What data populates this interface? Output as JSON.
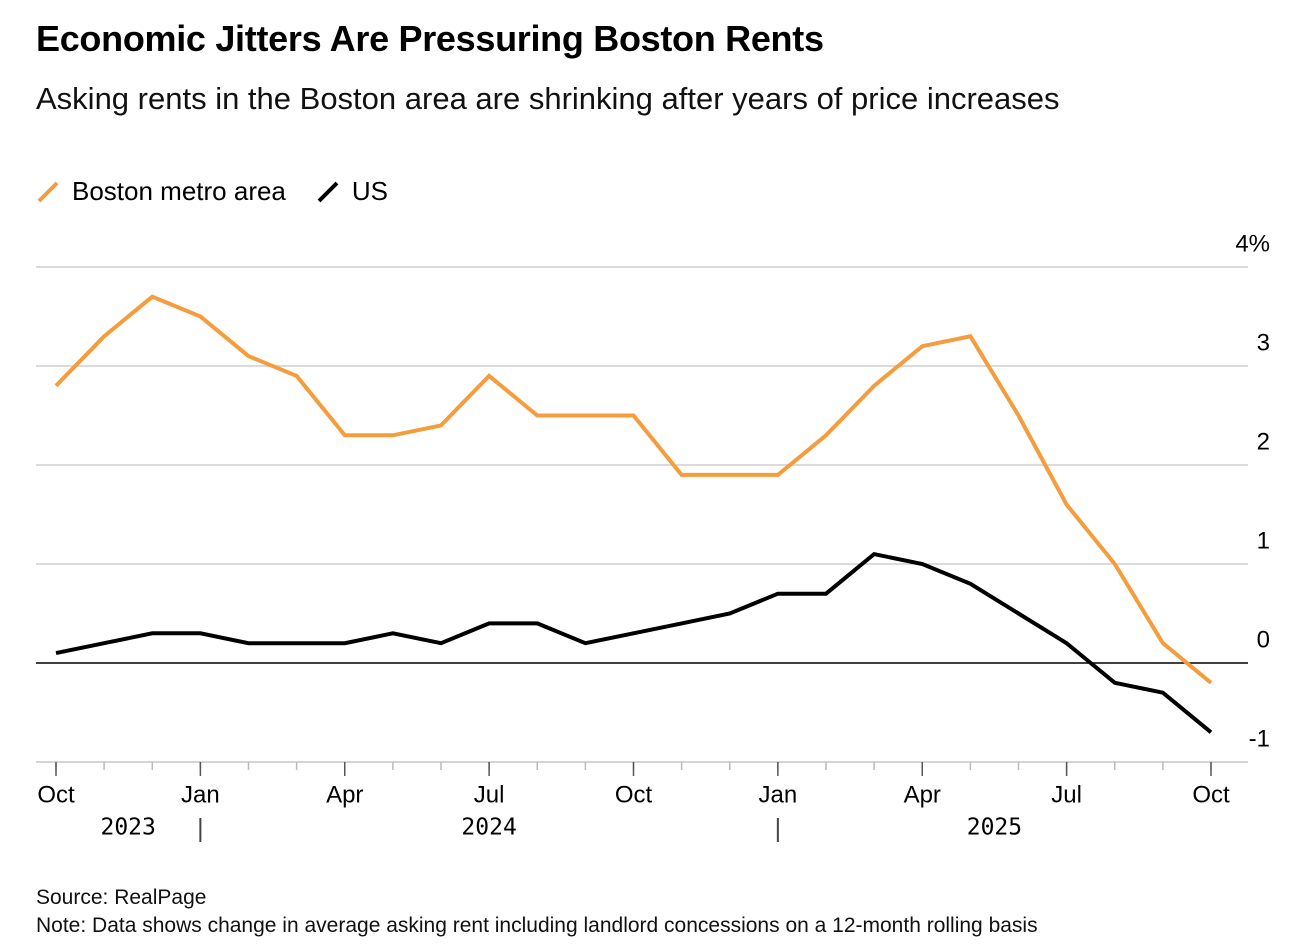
{
  "chart_data": {
    "type": "line",
    "title": "Economic Jitters Are Pressuring Boston Rents",
    "subtitle": "Asking rents in the Boston area are shrinking after years of price increases",
    "source": "Source: RealPage",
    "note": "Note: Data shows change in average asking rent including landlord concessions on a 12-month rolling basis",
    "x": [
      "2023-10",
      "2023-11",
      "2023-12",
      "2024-01",
      "2024-02",
      "2024-03",
      "2024-04",
      "2024-05",
      "2024-06",
      "2024-07",
      "2024-08",
      "2024-09",
      "2024-10",
      "2024-11",
      "2024-12",
      "2025-01",
      "2025-02",
      "2025-03",
      "2025-04",
      "2025-05",
      "2025-06",
      "2025-07",
      "2025-08",
      "2025-09",
      "2025-10"
    ],
    "series": [
      {
        "name": "Boston metro area",
        "color": "#f59c3c",
        "values": [
          2.8,
          3.3,
          3.7,
          3.5,
          3.1,
          2.9,
          2.3,
          2.3,
          2.4,
          2.9,
          2.5,
          2.5,
          2.5,
          1.9,
          1.9,
          1.9,
          2.3,
          2.8,
          3.2,
          3.3,
          2.5,
          1.6,
          1.0,
          0.2,
          -0.2
        ]
      },
      {
        "name": "US",
        "color": "#000000",
        "values": [
          0.1,
          0.2,
          0.3,
          0.3,
          0.2,
          0.2,
          0.2,
          0.3,
          0.2,
          0.4,
          0.4,
          0.2,
          0.3,
          0.4,
          0.5,
          0.7,
          0.7,
          1.1,
          1.0,
          0.8,
          0.5,
          0.2,
          -0.2,
          -0.3,
          -0.7
        ]
      }
    ],
    "xticks": [
      {
        "value": "2023-10",
        "label": "Oct"
      },
      {
        "value": "2024-01",
        "label": "Jan"
      },
      {
        "value": "2024-04",
        "label": "Apr"
      },
      {
        "value": "2024-07",
        "label": "Jul"
      },
      {
        "value": "2024-10",
        "label": "Oct"
      },
      {
        "value": "2025-01",
        "label": "Jan"
      },
      {
        "value": "2025-04",
        "label": "Apr"
      },
      {
        "value": "2025-07",
        "label": "Jul"
      },
      {
        "value": "2025-10",
        "label": "Oct"
      }
    ],
    "x_group_labels": [
      "2023",
      "2024",
      "2025"
    ],
    "ylim": [
      -1,
      4
    ],
    "yticks": [
      -1,
      0,
      1,
      2,
      {
        "value": 4,
        "label": "4%"
      },
      3
    ],
    "grid": true
  }
}
